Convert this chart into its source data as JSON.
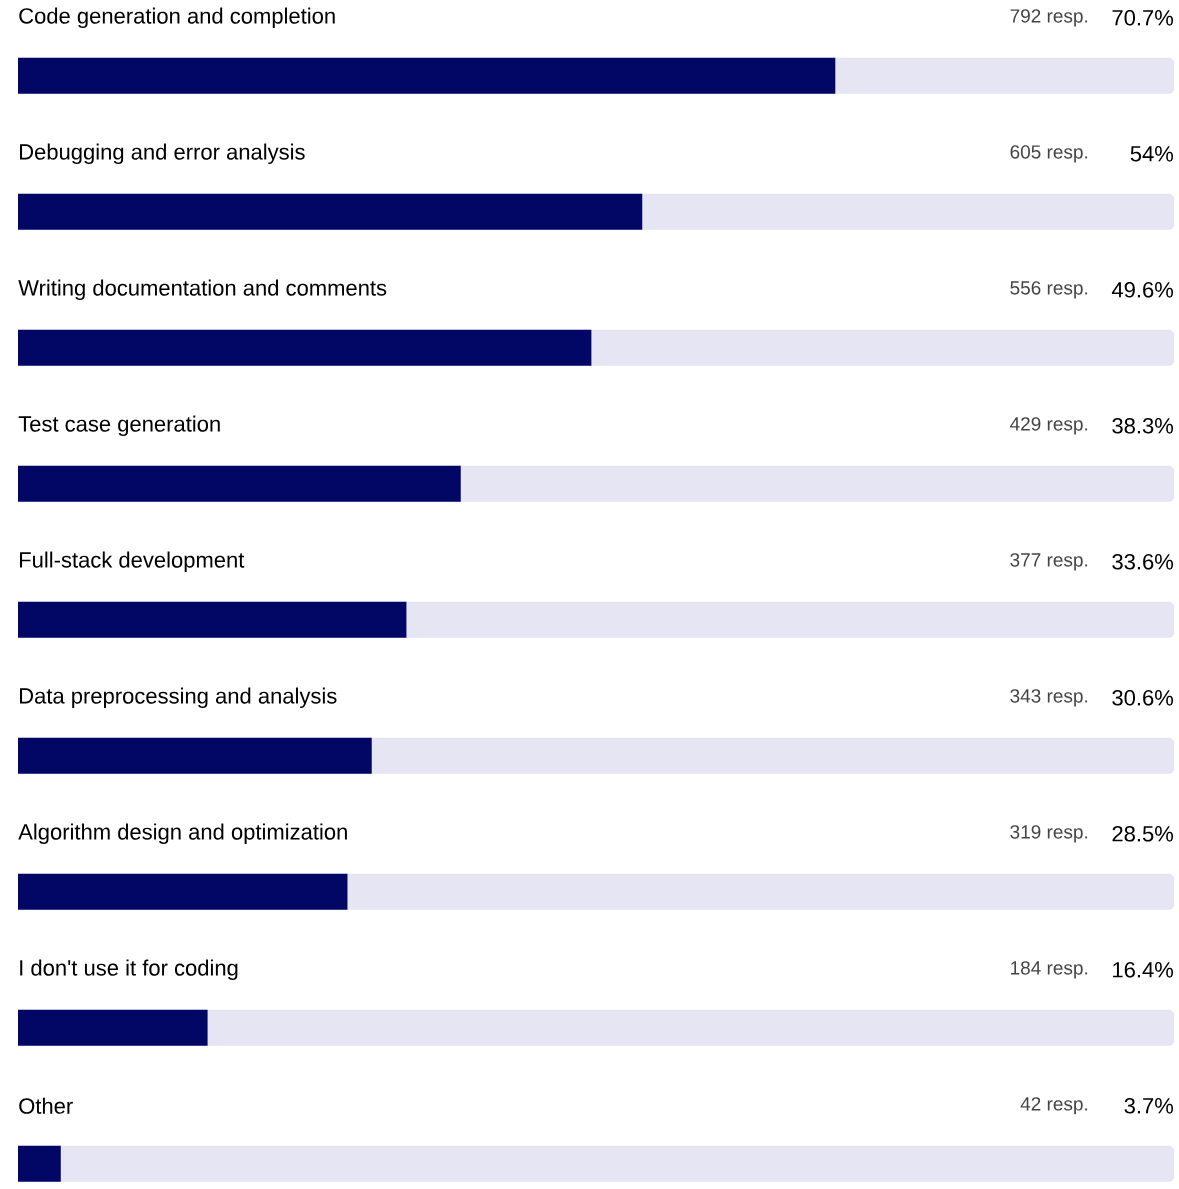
{
  "chart_data": {
    "type": "bar",
    "orientation": "horizontal",
    "categories": [
      "Code generation and completion",
      "Debugging and error analysis",
      "Writing documentation and comments",
      "Test case generation",
      "Full-stack development",
      "Data preprocessing and analysis",
      "Algorithm design and optimization",
      "I don't use it for coding",
      "Other"
    ],
    "values": [
      70.7,
      54,
      49.6,
      38.3,
      33.6,
      30.6,
      28.5,
      16.4,
      3.7
    ],
    "value_labels": [
      "70.7%",
      "54%",
      "49.6%",
      "38.3%",
      "33.6%",
      "30.6%",
      "28.5%",
      "16.4%",
      "3.7%"
    ],
    "color": "#020664",
    "xlim": [
      0,
      100
    ],
    "annotations": [
      "792 resp.",
      "605 resp.",
      "556 resp.",
      "429 resp.",
      "377 resp.",
      "343 resp.",
      "319 resp.",
      "184 resp.",
      "42 resp."
    ]
  }
}
